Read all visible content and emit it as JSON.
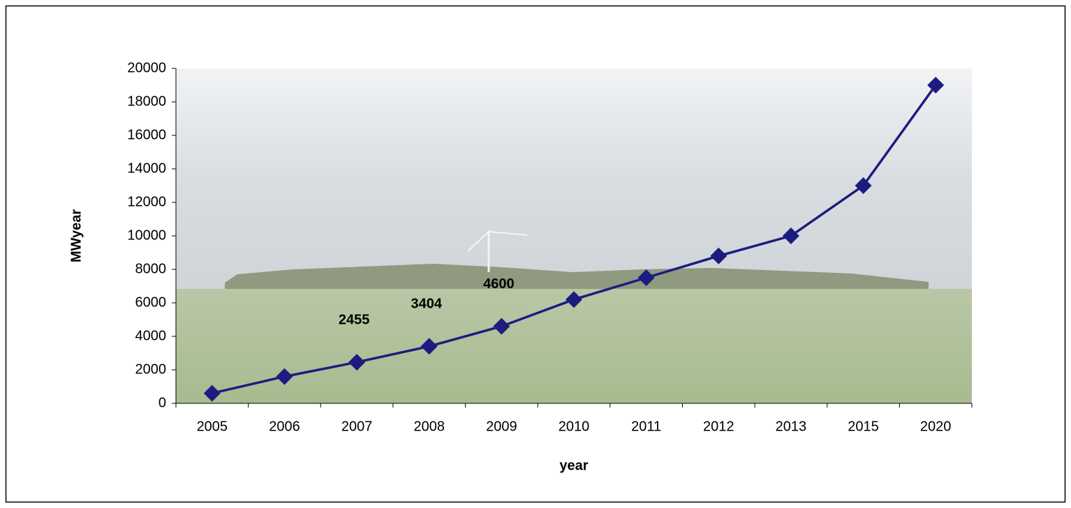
{
  "chart_data": {
    "type": "line",
    "xlabel": "year",
    "ylabel": "MWyear",
    "categories": [
      "2005",
      "2006",
      "2007",
      "2008",
      "2009",
      "2010",
      "2011",
      "2012",
      "2013",
      "2015",
      "2020"
    ],
    "series": [
      {
        "name": null,
        "color": "#1c1c80",
        "values": [
          600,
          1600,
          2455,
          3404,
          4600,
          6200,
          7500,
          8800,
          10000,
          13000,
          19000
        ],
        "value_labels": [
          null,
          null,
          "2455",
          "3404",
          "4600",
          null,
          null,
          null,
          null,
          null,
          null
        ]
      }
    ],
    "ylim": [
      0,
      20000
    ],
    "yticks": [
      0,
      2000,
      4000,
      6000,
      8000,
      10000,
      12000,
      14000,
      16000,
      18000,
      20000
    ],
    "grid": false
  }
}
